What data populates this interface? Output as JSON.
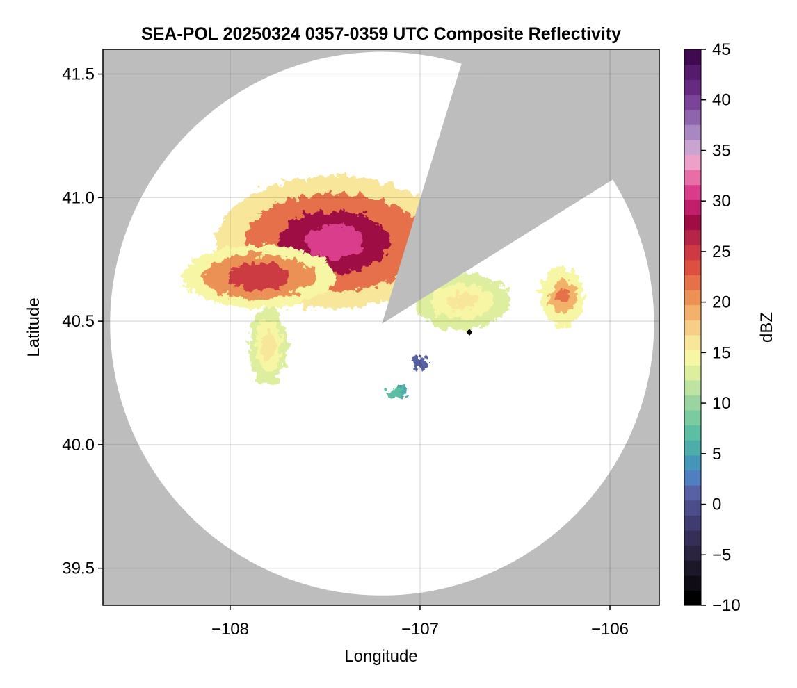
{
  "chart_data": {
    "type": "heatmap",
    "title": "SEA-POL 20250324 0357-0359 UTC Composite Reflectivity",
    "xlabel": "Longitude",
    "ylabel": "Latitude",
    "xlim": [
      -108.67,
      -105.74
    ],
    "ylim": [
      39.35,
      41.6
    ],
    "xticks": [
      -108,
      -107,
      -106
    ],
    "xtick_labels": [
      "−108",
      "−107",
      "−106"
    ],
    "yticks": [
      39.5,
      40.0,
      40.5,
      41.0,
      41.5
    ],
    "ytick_labels": [
      "39.5",
      "40.0",
      "40.5",
      "41.0",
      "41.5"
    ],
    "grid": true,
    "background_color": "#bdbdbd",
    "radar": {
      "center_lon": -107.2,
      "center_lat": 40.49,
      "coverage_radius_deg_lat": 1.1,
      "blocked_sectors_deg_from_north": [
        [
          17,
          58
        ]
      ]
    },
    "marker": {
      "lon": -106.74,
      "lat": 40.455,
      "shape": "diamond",
      "color": "#000000"
    },
    "echoes": [
      {
        "region": "main-cell",
        "lon": -107.45,
        "lat": 40.82,
        "peak_dbz": 31,
        "description_level": "strong"
      },
      {
        "region": "west-arm",
        "lon": -107.85,
        "lat": 40.68,
        "peak_dbz": 27
      },
      {
        "region": "southwest-band",
        "lon": -107.8,
        "lat": 40.4,
        "peak_dbz": 16
      },
      {
        "region": "east-sector-band",
        "lon": -106.78,
        "lat": 40.58,
        "peak_dbz": 16
      },
      {
        "region": "east-isolated",
        "lon": -106.25,
        "lat": 40.6,
        "peak_dbz": 22
      },
      {
        "region": "south-weak-1",
        "lon": -107.0,
        "lat": 40.33,
        "peak_dbz": 1
      },
      {
        "region": "south-weak-2",
        "lon": -107.1,
        "lat": 40.22,
        "peak_dbz": 5
      },
      {
        "region": "south-weak-3",
        "lon": -107.14,
        "lat": 40.21,
        "peak_dbz": 7
      }
    ],
    "colorbar": {
      "label": "dBZ",
      "min": -10,
      "max": 45,
      "ticks": [
        -10,
        -5,
        0,
        5,
        10,
        15,
        20,
        25,
        30,
        35,
        40,
        45
      ],
      "tick_labels": [
        "−10",
        "−5",
        "0",
        "5",
        "10",
        "15",
        "20",
        "25",
        "30",
        "35",
        "40",
        "45"
      ],
      "colors": [
        "#000000",
        "#0f0c16",
        "#1d1829",
        "#2a2441",
        "#352f58",
        "#3f3c72",
        "#4b4d8b",
        "#5761a4",
        "#4f7fc0",
        "#4595b8",
        "#4dadaa",
        "#5cbfa4",
        "#7acb9f",
        "#9ad5a1",
        "#bde5a1",
        "#ddef9e",
        "#f6f6a5",
        "#f8e79a",
        "#f6ce87",
        "#f2b26b",
        "#ec9154",
        "#e5704a",
        "#dc5040",
        "#cd3a43",
        "#b52547",
        "#9f0d45",
        "#c01f6c",
        "#d93c8b",
        "#e86ea8",
        "#eea1c8",
        "#c9a4d0",
        "#a887c2",
        "#8e64ad",
        "#7a4498",
        "#662a80",
        "#551a6b",
        "#3f0a4f"
      ]
    }
  }
}
